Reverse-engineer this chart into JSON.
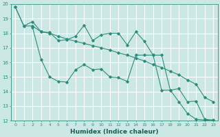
{
  "xlabel": "Humidex (Indice chaleur)",
  "background_color": "#cce8e4",
  "grid_color": "#ffffff",
  "line_color": "#2e8b7a",
  "xlim": [
    -0.5,
    23.5
  ],
  "ylim": [
    12,
    20
  ],
  "yticks": [
    12,
    13,
    14,
    15,
    16,
    17,
    18,
    19,
    20
  ],
  "xticks": [
    0,
    1,
    2,
    3,
    4,
    5,
    6,
    7,
    8,
    9,
    10,
    11,
    12,
    13,
    14,
    15,
    16,
    17,
    18,
    19,
    20,
    21,
    22,
    23
  ],
  "series1_x": [
    0,
    1,
    2,
    3,
    4,
    5,
    6,
    7,
    8,
    9,
    10,
    11,
    12,
    13,
    14,
    15,
    16,
    17,
    18,
    19,
    20,
    21,
    22,
    23
  ],
  "series1_y": [
    19.8,
    18.5,
    18.8,
    18.1,
    18.05,
    17.5,
    17.55,
    17.8,
    18.55,
    17.5,
    17.9,
    18.0,
    18.0,
    17.2,
    18.1,
    17.45,
    16.5,
    16.5,
    14.1,
    13.3,
    12.5,
    12.1,
    12.05,
    12.0
  ],
  "series2_x": [
    0,
    1,
    2,
    3,
    4,
    5,
    6,
    7,
    8,
    9,
    10,
    11,
    12,
    13,
    14,
    15,
    16,
    17,
    18,
    19,
    20,
    21,
    22,
    23
  ],
  "series2_y": [
    19.8,
    18.5,
    18.5,
    18.1,
    18.0,
    17.8,
    17.6,
    17.45,
    17.3,
    17.15,
    17.0,
    16.85,
    16.65,
    16.5,
    16.3,
    16.1,
    15.85,
    15.65,
    15.4,
    15.15,
    14.8,
    14.5,
    13.6,
    13.3
  ],
  "series3_x": [
    2,
    3,
    4,
    5,
    6,
    7,
    8,
    9,
    10,
    11,
    12,
    13,
    14,
    15,
    16,
    17,
    18,
    19,
    20,
    21,
    22,
    23
  ],
  "series3_y": [
    18.4,
    16.2,
    15.0,
    14.7,
    14.65,
    15.5,
    15.85,
    15.5,
    15.55,
    15.0,
    14.95,
    14.7,
    16.5,
    16.5,
    16.5,
    14.1,
    14.1,
    14.2,
    13.3,
    13.35,
    12.1,
    12.05
  ],
  "line_width": 0.8,
  "marker": "D",
  "marker_size": 1.8
}
